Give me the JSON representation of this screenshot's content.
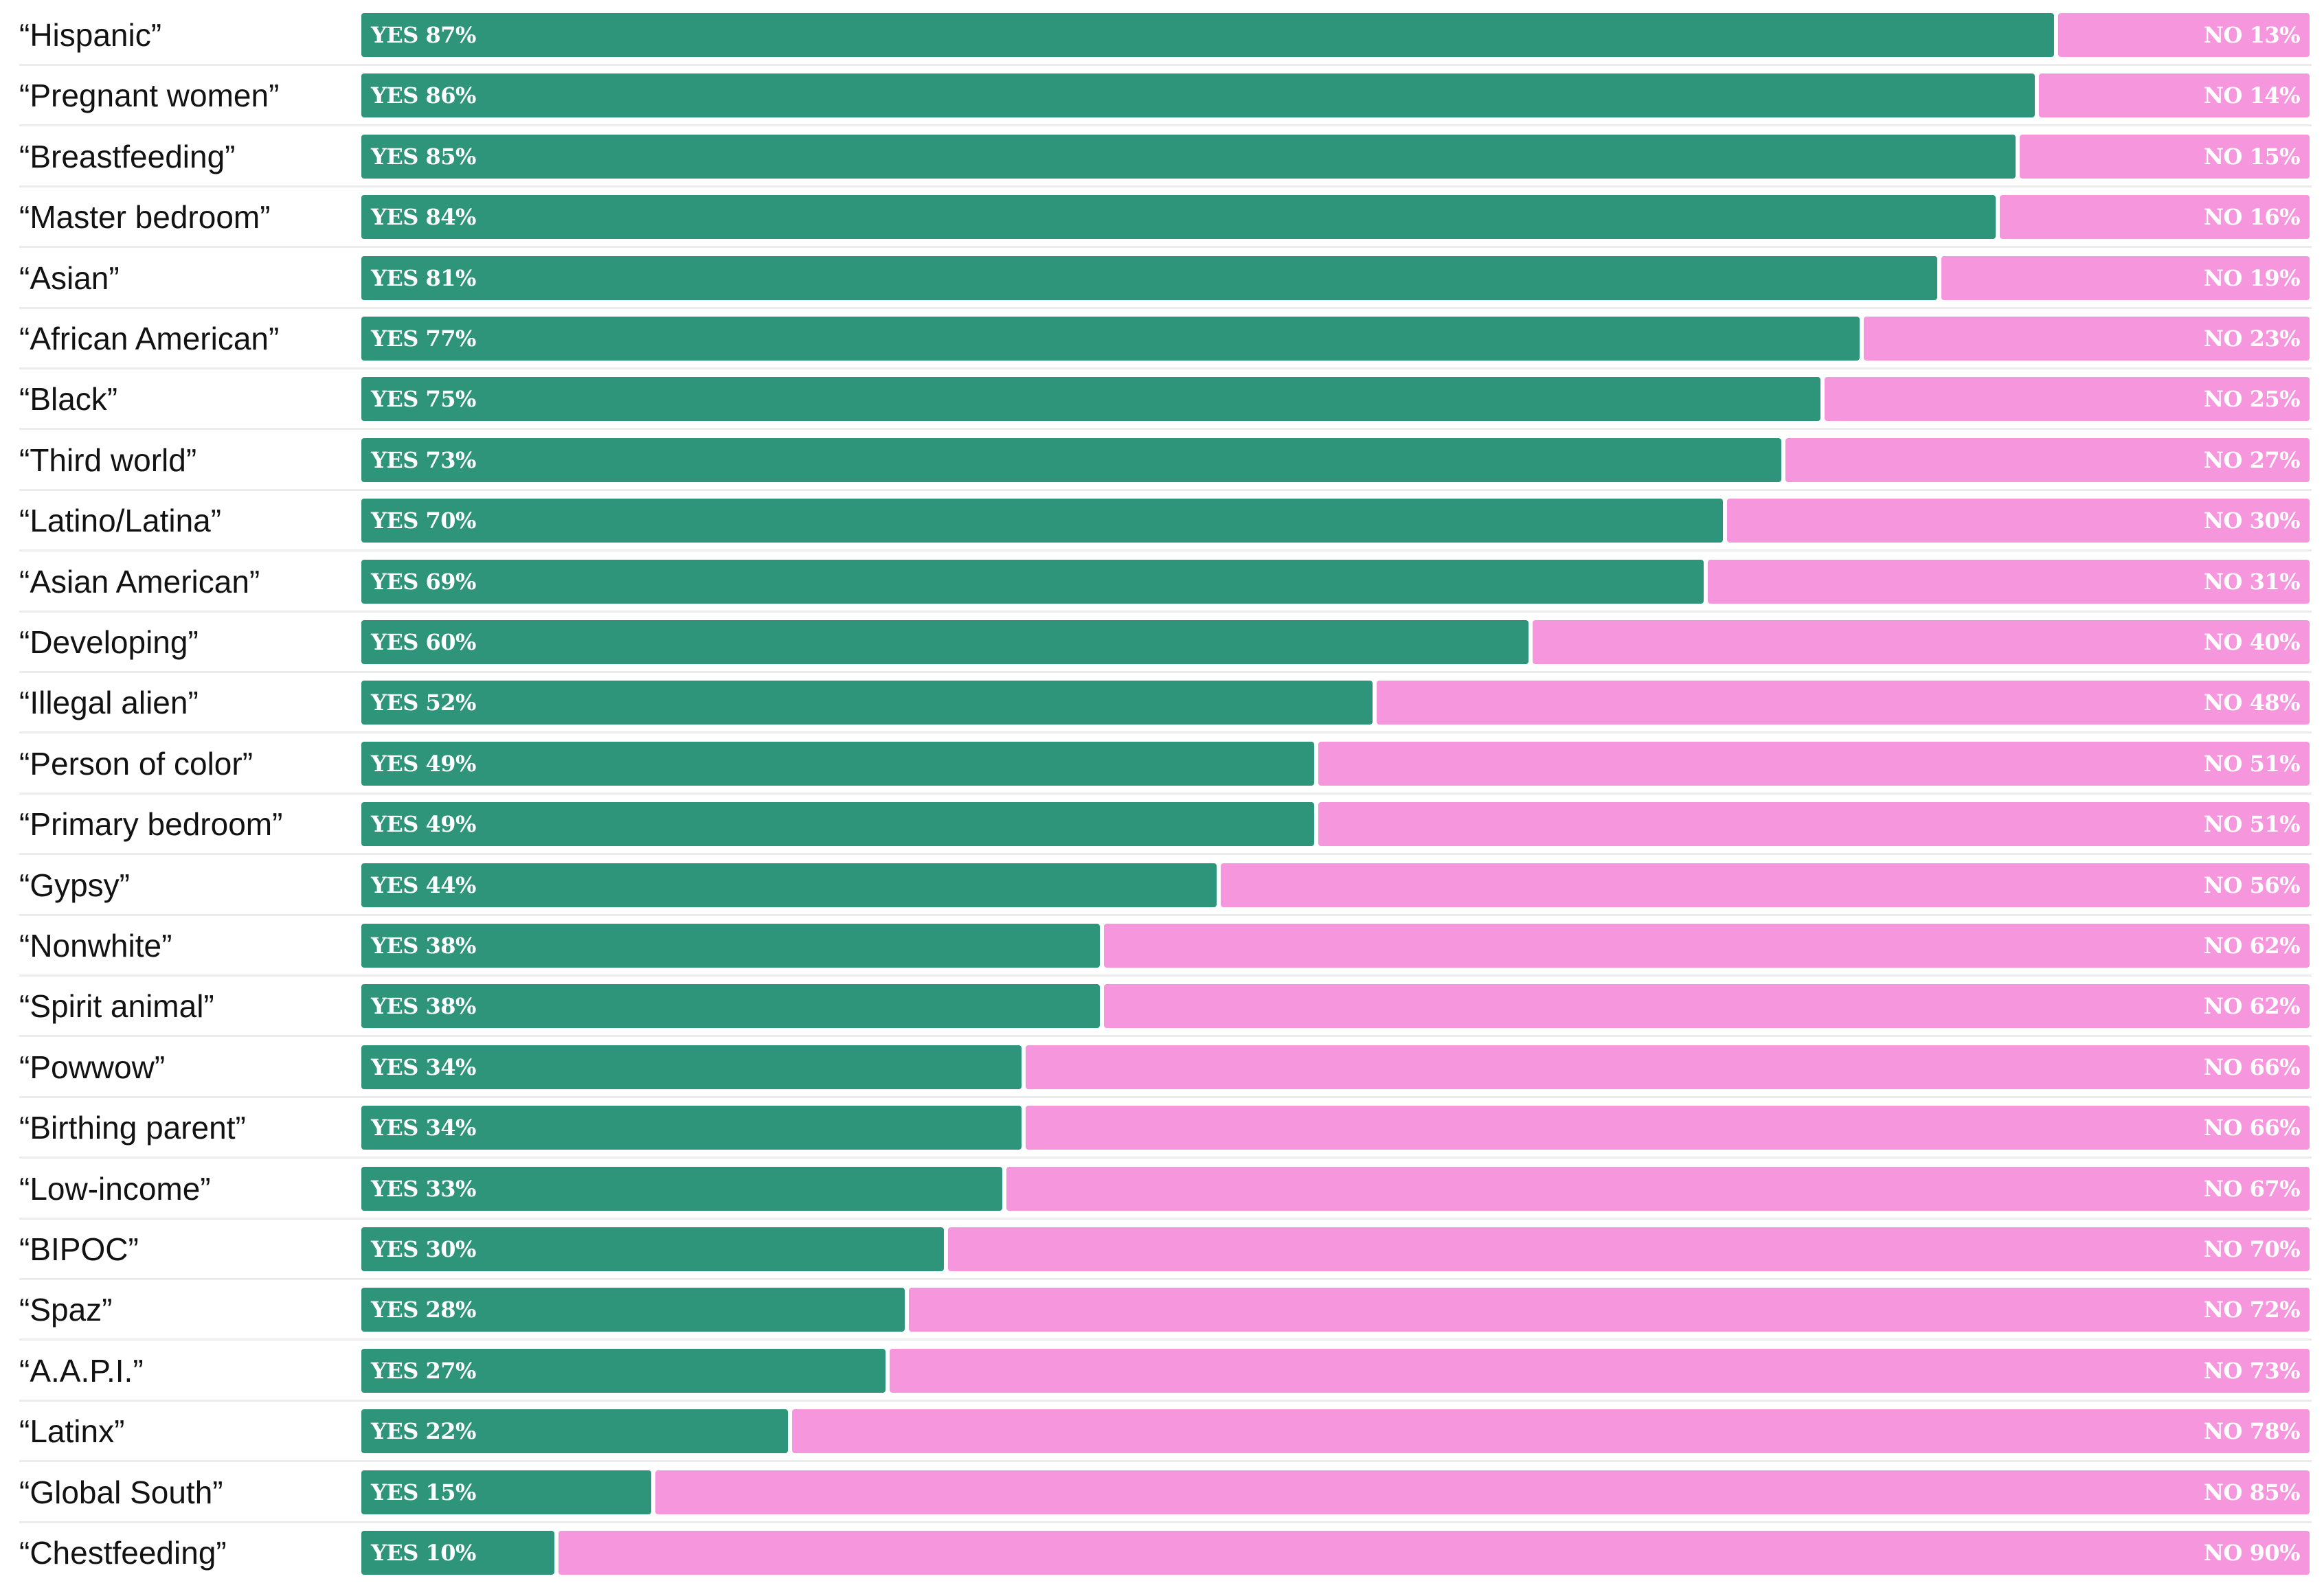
{
  "chart_data": {
    "type": "bar",
    "orientation": "horizontal",
    "stacked": true,
    "categories": [
      "“Hispanic”",
      "“Pregnant women”",
      "“Breastfeeding”",
      "“Master bedroom”",
      "“Asian”",
      "“African American”",
      "“Black”",
      "“Third world”",
      "“Latino/Latina”",
      "“Asian American”",
      "“Developing”",
      "“Illegal alien”",
      "“Person of color”",
      "“Primary bedroom”",
      "“Gypsy”",
      "“Nonwhite”",
      "“Spirit animal”",
      "“Powwow”",
      "“Birthing parent”",
      "“Low-income”",
      "“BIPOC”",
      "“Spaz”",
      "“A.A.P.I.”",
      "“Latinx”",
      "“Global South”",
      "“Chestfeeding”"
    ],
    "series": [
      {
        "name": "YES",
        "color": "#2e957a",
        "values": [
          87,
          86,
          85,
          84,
          81,
          77,
          75,
          73,
          70,
          69,
          60,
          52,
          49,
          49,
          44,
          38,
          38,
          34,
          34,
          33,
          30,
          28,
          27,
          22,
          15,
          10
        ],
        "labels": [
          "YES 87%",
          "YES 86%",
          "YES 85%",
          "YES 84%",
          "YES 81%",
          "YES 77%",
          "YES 75%",
          "YES 73%",
          "YES 70%",
          "YES 69%",
          "YES 60%",
          "YES 52%",
          "YES 49%",
          "YES 49%",
          "YES 44%",
          "YES 38%",
          "YES 38%",
          "YES 34%",
          "YES 34%",
          "YES 33%",
          "YES 30%",
          "YES 28%",
          "YES 27%",
          "YES 22%",
          "YES 15%",
          "YES 10%"
        ]
      },
      {
        "name": "NO",
        "color": "#f697dd",
        "values": [
          13,
          14,
          15,
          16,
          19,
          23,
          25,
          27,
          30,
          31,
          40,
          48,
          51,
          51,
          56,
          62,
          62,
          66,
          66,
          67,
          70,
          72,
          73,
          78,
          85,
          90
        ],
        "labels": [
          "NO 13%",
          "NO 14%",
          "NO 15%",
          "NO 16%",
          "NO 19%",
          "NO 23%",
          "NO 25%",
          "NO 27%",
          "NO 30%",
          "NO 31%",
          "NO 40%",
          "NO 48%",
          "NO 51%",
          "NO 51%",
          "NO 56%",
          "NO 62%",
          "NO 62%",
          "NO 66%",
          "NO 66%",
          "NO 67%",
          "NO 70%",
          "NO 72%",
          "NO 73%",
          "NO 78%",
          "NO 85%",
          "NO 90%"
        ]
      }
    ],
    "xlim": [
      0,
      100
    ],
    "title": "",
    "xlabel": "",
    "ylabel": "",
    "grid": false,
    "legend": "none"
  }
}
